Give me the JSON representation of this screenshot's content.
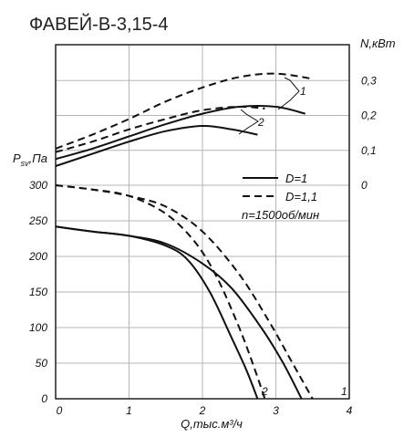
{
  "chart_data": {
    "type": "line",
    "title": "ФАВЕЙ-В-3,15-4",
    "xlabel": "Q,тыс.м³/ч",
    "ylabel_left": "Psv,Па",
    "ylabel_right": "N,кВт",
    "xlim": [
      0,
      4
    ],
    "ylim_left": [
      0,
      300
    ],
    "ylim_right": [
      0,
      0.3
    ],
    "x_ticks": [
      "0",
      "1",
      "2",
      "3",
      "4"
    ],
    "y_ticks_left": [
      "0",
      "50",
      "100",
      "150",
      "200",
      "250",
      "300"
    ],
    "y_ticks_right": [
      "0",
      "0,1",
      "0,2",
      "0,3"
    ],
    "legend": {
      "entries": [
        {
          "label": "D=1",
          "style": "solid"
        },
        {
          "label": "D=1,1",
          "style": "dashed"
        }
      ],
      "note": "n=1500об/мин",
      "position": "right"
    },
    "grid": true,
    "curve_labels": [
      "1",
      "2"
    ],
    "pressure_curves": [
      {
        "id": "D1-curve1",
        "style": "solid",
        "label": "1",
        "x": [
          0,
          0.5,
          1.0,
          1.5,
          2.0,
          2.4,
          2.8,
          3.1,
          3.35
        ],
        "y": [
          242,
          235,
          229,
          218,
          190,
          155,
          100,
          50,
          0
        ]
      },
      {
        "id": "D1-curve2",
        "style": "solid",
        "label": "2",
        "x": [
          0,
          0.5,
          1.0,
          1.5,
          1.8,
          2.1,
          2.4,
          2.6,
          2.75
        ],
        "y": [
          242,
          235,
          229,
          215,
          195,
          150,
          85,
          40,
          0
        ]
      },
      {
        "id": "D11-curve1",
        "style": "dashed",
        "label": "1",
        "x": [
          0,
          0.5,
          1.0,
          1.5,
          2.0,
          2.5,
          2.9,
          3.2,
          3.5
        ],
        "y": [
          300,
          294,
          285,
          270,
          235,
          175,
          110,
          55,
          0
        ]
      },
      {
        "id": "D11-curve2",
        "style": "dashed",
        "label": "2",
        "x": [
          0,
          0.5,
          1.0,
          1.5,
          1.9,
          2.2,
          2.5,
          2.7,
          2.85
        ],
        "y": [
          300,
          294,
          285,
          260,
          220,
          170,
          100,
          45,
          0
        ]
      }
    ],
    "power_curves": [
      {
        "id": "D1-power1",
        "style": "solid",
        "label": "1",
        "x": [
          0,
          0.5,
          1.0,
          1.5,
          2.0,
          2.5,
          3.0,
          3.4
        ],
        "y": [
          0.075,
          0.105,
          0.14,
          0.175,
          0.205,
          0.225,
          0.225,
          0.205
        ]
      },
      {
        "id": "D1-power2",
        "style": "solid",
        "label": "2",
        "x": [
          0,
          0.5,
          1.0,
          1.5,
          2.0,
          2.4,
          2.75
        ],
        "y": [
          0.055,
          0.09,
          0.125,
          0.155,
          0.17,
          0.16,
          0.145
        ]
      },
      {
        "id": "D11-power1",
        "style": "dashed",
        "label": "1",
        "x": [
          0,
          0.5,
          1.0,
          1.5,
          2.0,
          2.5,
          3.0,
          3.5
        ],
        "y": [
          0.105,
          0.145,
          0.19,
          0.24,
          0.28,
          0.31,
          0.32,
          0.305
        ]
      },
      {
        "id": "D11-power2",
        "style": "dashed",
        "label": "2",
        "x": [
          0,
          0.5,
          1.0,
          1.5,
          2.0,
          2.5,
          2.85
        ],
        "y": [
          0.095,
          0.125,
          0.16,
          0.19,
          0.215,
          0.225,
          0.22
        ]
      }
    ]
  }
}
